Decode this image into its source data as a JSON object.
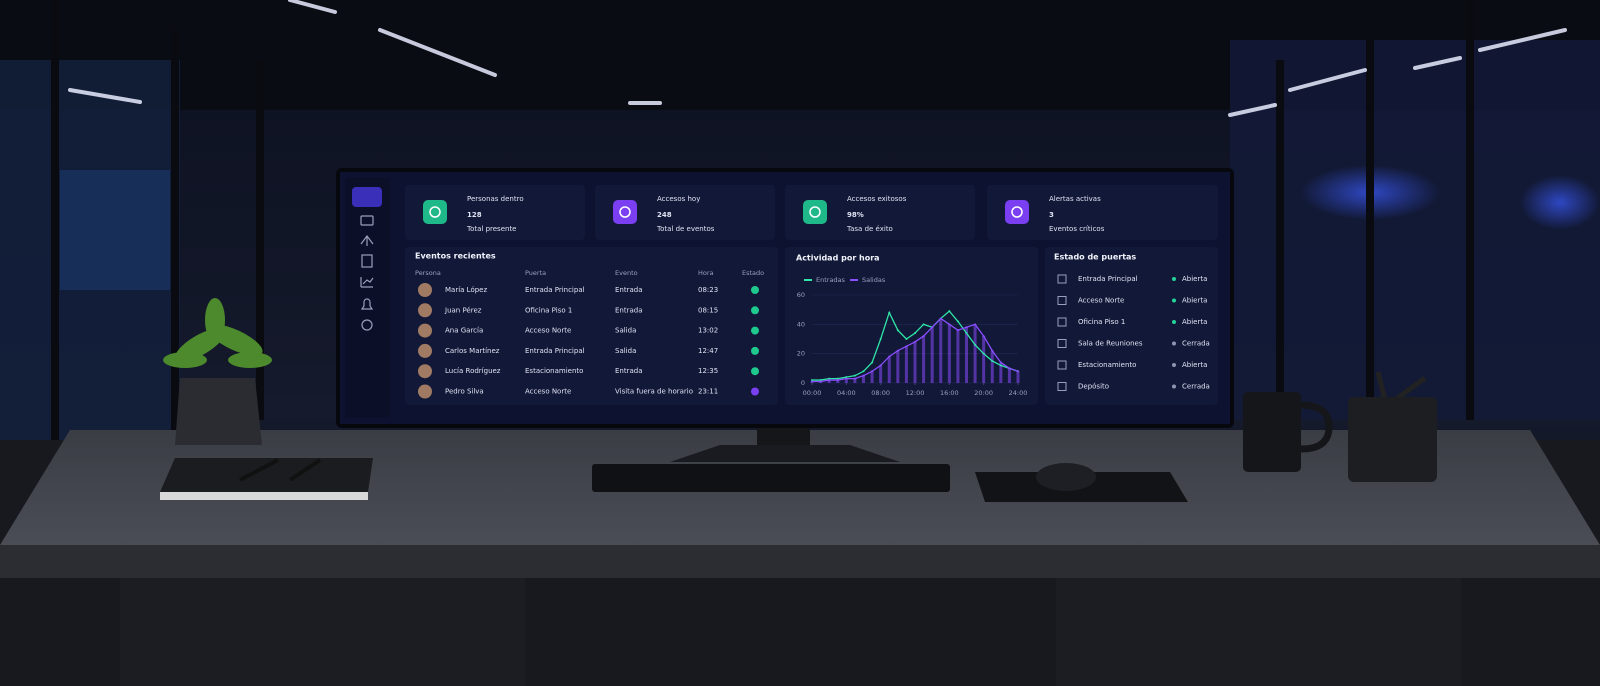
{
  "kpis": [
    {
      "label": "Personas dentro",
      "value": "128",
      "sub": "Total presente",
      "color": "#1fb889"
    },
    {
      "label": "Accesos hoy",
      "value": "248",
      "sub": "Total de eventos",
      "color": "#7b3ff2"
    },
    {
      "label": "Accesos exitosos",
      "value": "98%",
      "sub": "Tasa de éxito",
      "color": "#1fb889"
    },
    {
      "label": "Alertas activas",
      "value": "3",
      "sub": "Eventos críticos",
      "color": "#7b3ff2"
    }
  ],
  "events": {
    "title": "Eventos recientes",
    "columns": [
      "Persona",
      "Puerta",
      "Evento",
      "Hora",
      "Estado"
    ],
    "rows": [
      {
        "person": "María López",
        "door": "Entrada Principal",
        "event": "Entrada",
        "time": "08:23",
        "color": "#1fc98e"
      },
      {
        "person": "Juan Pérez",
        "door": "Oficina Piso 1",
        "event": "Entrada",
        "time": "08:15",
        "color": "#1fc98e"
      },
      {
        "person": "Ana García",
        "door": "Acceso Norte",
        "event": "Salida",
        "time": "13:02",
        "color": "#1fc98e"
      },
      {
        "person": "Carlos Martínez",
        "door": "Entrada Principal",
        "event": "Salida",
        "time": "12:47",
        "color": "#1fc98e"
      },
      {
        "person": "Lucía Rodríguez",
        "door": "Estacionamiento",
        "event": "Entrada",
        "time": "12:35",
        "color": "#1fc98e"
      },
      {
        "person": "Pedro Silva",
        "door": "Acceso Norte",
        "event": "Visita fuera de horario",
        "time": "23:11",
        "color": "#7b3ff2"
      }
    ]
  },
  "chart_data": {
    "type": "line",
    "title": "Actividad por hora",
    "x": [
      0,
      1,
      2,
      3,
      4,
      5,
      6,
      7,
      8,
      9,
      10,
      11,
      12,
      13,
      14,
      15,
      16,
      17,
      18,
      19,
      20,
      21,
      22,
      23,
      24
    ],
    "xlim": [
      0,
      24
    ],
    "xticks": [
      {
        "value": 0,
        "label": "00:00"
      },
      {
        "value": 4,
        "label": "04:00"
      },
      {
        "value": 8,
        "label": "08:00"
      },
      {
        "value": 12,
        "label": "12:00"
      },
      {
        "value": 16,
        "label": "16:00"
      },
      {
        "value": 20,
        "label": "20:00"
      },
      {
        "value": 24,
        "label": "24:00"
      }
    ],
    "ylim": [
      0,
      60
    ],
    "yticks": [
      0,
      20,
      40,
      60
    ],
    "grid": true,
    "series": [
      {
        "name": "Entradas",
        "color": "#2ee6a6",
        "values": [
          2,
          2,
          3,
          3,
          4,
          5,
          8,
          14,
          30,
          48,
          36,
          30,
          34,
          40,
          38,
          44,
          49,
          42,
          34,
          26,
          20,
          15,
          12,
          10,
          8
        ]
      },
      {
        "name": "Salidas",
        "color": "#8a4dff",
        "values": [
          1,
          1,
          2,
          2,
          3,
          3,
          5,
          8,
          12,
          18,
          22,
          25,
          28,
          32,
          38,
          44,
          40,
          36,
          38,
          40,
          32,
          22,
          14,
          10,
          8
        ]
      }
    ]
  },
  "doors": {
    "title": "Estado de puertas",
    "rows": [
      {
        "name": "Entrada Principal",
        "status": "Abierta",
        "color": "#22d39a"
      },
      {
        "name": "Acceso Norte",
        "status": "Abierta",
        "color": "#22d39a"
      },
      {
        "name": "Oficina Piso 1",
        "status": "Abierta",
        "color": "#22d39a"
      },
      {
        "name": "Sala de Reuniones",
        "status": "Cerrada",
        "color": "#8e95b0"
      },
      {
        "name": "Estacionamiento",
        "status": "Abierta",
        "color": "#8e95b0"
      },
      {
        "name": "Depósito",
        "status": "Cerrada",
        "color": "#8e95b0"
      }
    ]
  }
}
